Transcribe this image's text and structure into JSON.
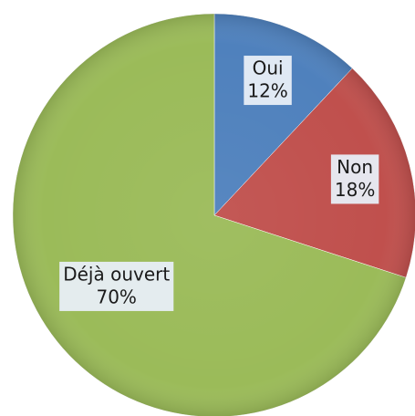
{
  "chart_data": {
    "type": "pie",
    "categories": [
      "Oui",
      "Non",
      "Déjà ouvert"
    ],
    "values": [
      12,
      18,
      70
    ],
    "value_labels": [
      "12%",
      "18%",
      "70%"
    ],
    "colors": [
      "#4f81bd",
      "#c0504d",
      "#9bbb59"
    ]
  }
}
